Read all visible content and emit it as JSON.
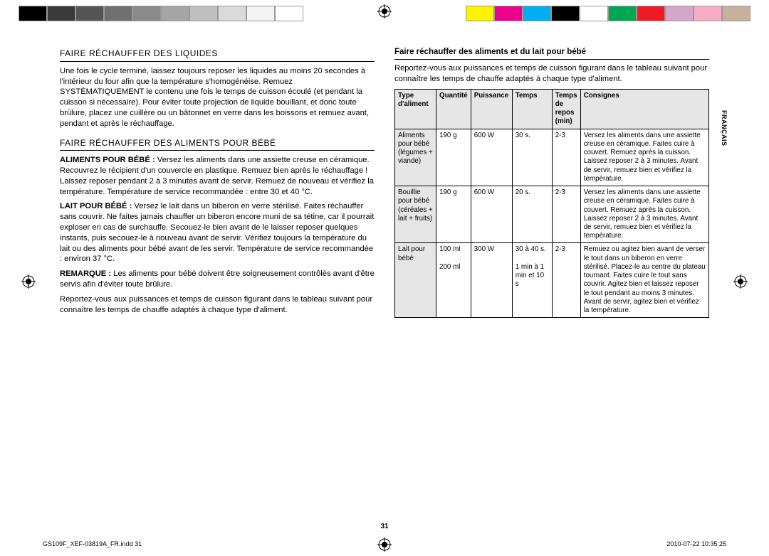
{
  "colorbars": {
    "left": [
      "#000000",
      "#3a3a3a",
      "#555555",
      "#707070",
      "#8a8a8a",
      "#a5a5a5",
      "#bfbfbf",
      "#dadada",
      "#f4f4f4",
      "#ffffff"
    ],
    "right": [
      "#fff200",
      "#ec008c",
      "#00adef",
      "#000000",
      "#ffffff",
      "#00a651",
      "#ed1c24",
      "#d4a6c8",
      "#f7adc3",
      "#c7b299"
    ]
  },
  "sidetab": "FRANÇAIS",
  "left": {
    "h1": "FAIRE RÉCHAUFFER DES LIQUIDES",
    "p1": "Une fois le cycle terminé, laissez toujours reposer les liquides au moins 20 secondes à l'intérieur du four afin que la température s'homogénéise. Remuez SYSTÉMATIQUEMENT le contenu une fois le temps de cuisson écoulé (et pendant la cuisson si nécessaire). Pour éviter toute projection de liquide bouillant, et donc toute brûlure, placez une cuillère ou un bâtonnet en verre dans les boissons et remuez avant, pendant et après le réchauffage.",
    "h2": "FAIRE RÉCHAUFFER DES ALIMENTS POUR BÉBÉ",
    "p2a_label": "ALIMENTS POUR BÉBÉ :",
    "p2a": " Versez les aliments dans une assiette creuse en céramique. Recouvrez le récipient d'un couvercle en plastique. Remuez bien après le réchauffage ! Laissez reposer pendant 2 à 3 minutes avant de servir. Remuez de nouveau et vérifiez la température. Température de service recommandée : entre 30 et 40 °C.",
    "p2b_label": "LAIT POUR BÉBÉ :",
    "p2b": " Versez le lait dans un biberon en verre stérilisé. Faites réchauffer sans couvrir. Ne faites jamais chauffer un biberon encore muni de sa tétine, car il pourrait exploser en cas de surchauffe. Secouez-le bien avant de le laisser reposer quelques instants, puis secouez-le à nouveau avant de servir. Vérifiez toujours la température du lait ou des aliments pour bébé avant de les servir. Température de service recommandée : environ 37 °C.",
    "p2c_label": "REMARQUE :",
    "p2c": " Les aliments pour bébé doivent être soigneusement contrôlés avant d'être servis afin d'éviter toute brûlure.",
    "p2d": "Reportez-vous aux puissances et temps de cuisson figurant dans le tableau suivant pour connaître les temps de chauffe adaptés à chaque type d'aliment."
  },
  "right": {
    "head": "Faire réchauffer des aliments et du lait pour bébé",
    "intro": "Reportez-vous aux puissances et temps de cuisson figurant dans le tableau suivant pour connaître les temps de chauffe adaptés à chaque type d'aliment."
  },
  "table": {
    "headers": [
      "Type d'aliment",
      "Quantité",
      "Puissance",
      "Temps",
      "Temps de repos (min)",
      "Consignes"
    ],
    "rows": [
      {
        "type": "Aliments pour bébé (légumes + viande)",
        "qty": "190 g",
        "pow": "600 W",
        "time": "30 s.",
        "rest": "2-3",
        "instr": "Versez les aliments dans une assiette creuse en céramique. Faites cuire à couvert. Remuez après la cuisson. Laissez reposer 2 à 3 minutes. Avant de servir, remuez bien et vérifiez la température."
      },
      {
        "type": "Bouillie pour bébé (céréales + lait + fruits)",
        "qty": "190 g",
        "pow": "600 W",
        "time": "20 s.",
        "rest": "2-3",
        "instr": "Versez les aliments dans une assiette creuse en céramique. Faites cuire à couvert. Remuez après la cuisson. Laissez reposer 2 à 3 minutes. Avant de servir, remuez bien et vérifiez la température."
      },
      {
        "type": "Lait pour bébé",
        "qty": "100 ml\n\n200 ml",
        "pow": "300 W",
        "time": "30 à 40 s.\n\n1 min à 1 min et 10 s",
        "rest": "2-3",
        "instr": "Remuez ou agitez bien avant de verser le tout dans un biberon en verre stérilisé. Placez-le au centre du plateau tournant. Faites cuire le tout sans couvrir. Agitez bien et laissez reposer le tout pendant au moins 3 minutes. Avant de servir, agitez bien et vérifiez la température."
      }
    ]
  },
  "pagenum": "31",
  "footer": {
    "file": "GS109F_XEF-03819A_FR.indd   31",
    "stamp": "2010-07-22     10:35:25"
  }
}
